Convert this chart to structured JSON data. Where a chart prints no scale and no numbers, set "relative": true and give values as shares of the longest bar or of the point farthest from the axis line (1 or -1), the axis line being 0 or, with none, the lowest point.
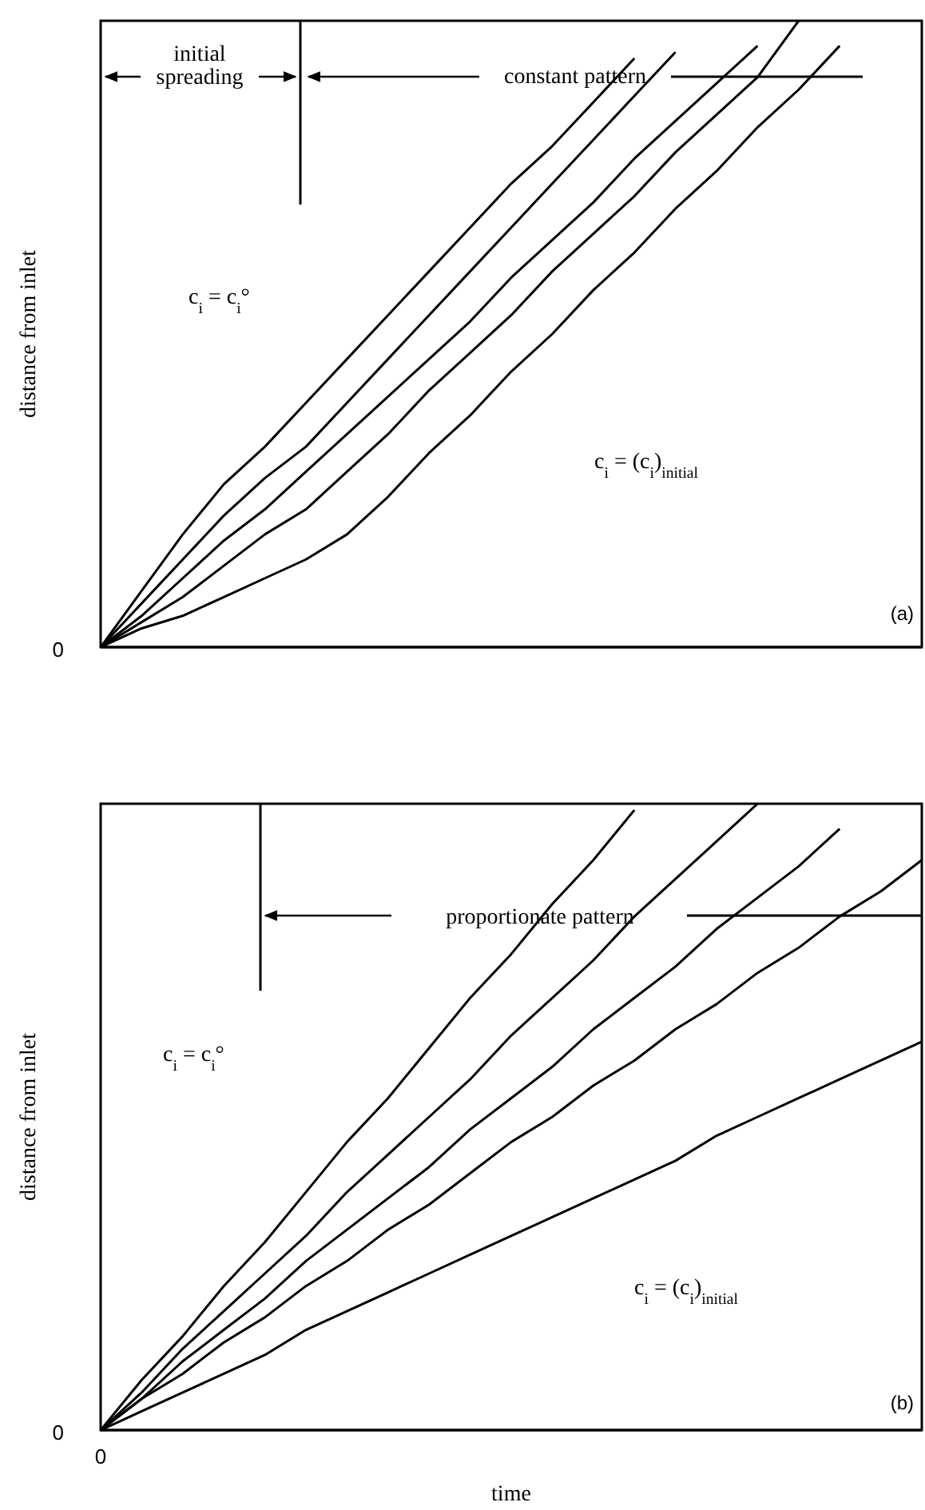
{
  "chart_data": [
    {
      "type": "line",
      "relative": true,
      "ylabel": "distance from inlet",
      "categories": [
        null,
        null,
        null,
        null,
        null,
        null,
        null,
        null,
        null,
        null,
        null,
        null,
        null,
        null,
        null,
        null,
        null,
        null,
        null,
        null,
        null
      ],
      "series": [
        {
          "color": "#000000",
          "values": [
            0,
            0.09,
            0.18,
            0.26,
            0.32,
            0.39,
            0.46,
            0.53,
            0.6,
            0.67,
            0.74,
            0.8,
            0.87,
            0.94,
            null,
            null,
            null,
            null,
            null,
            null,
            null
          ]
        },
        {
          "color": "#000000",
          "values": [
            0,
            0.07,
            0.14,
            0.21,
            0.27,
            0.32,
            0.39,
            0.46,
            0.53,
            0.6,
            0.67,
            0.74,
            0.81,
            0.88,
            0.95,
            null,
            null,
            null,
            null,
            null,
            null
          ]
        },
        {
          "color": "#000000",
          "values": [
            0,
            0.05,
            0.11,
            0.17,
            0.22,
            0.28,
            0.34,
            0.4,
            0.46,
            0.52,
            0.59,
            0.65,
            0.71,
            0.78,
            0.84,
            0.9,
            0.96,
            null,
            null,
            null,
            null
          ]
        },
        {
          "color": "#000000",
          "values": [
            0,
            0.04,
            0.08,
            0.13,
            0.18,
            0.22,
            0.28,
            0.34,
            0.41,
            0.47,
            0.53,
            0.6,
            0.66,
            0.72,
            0.79,
            0.85,
            0.91,
            1.0,
            null,
            null,
            null
          ]
        },
        {
          "color": "#000000",
          "values": [
            0,
            0.03,
            0.05,
            0.08,
            0.11,
            0.14,
            0.18,
            0.24,
            0.31,
            0.37,
            0.44,
            0.5,
            0.57,
            0.63,
            0.7,
            0.76,
            0.83,
            0.89,
            0.96,
            null,
            null
          ]
        }
      ],
      "annotations": [
        "0",
        "initial spreading",
        "constant pattern",
        "c$_{i}$ = c$_{i}$°",
        "c$_{i}$ = (c$_{i}$)$_{initial}$",
        "(a)"
      ]
    },
    {
      "type": "line",
      "relative": true,
      "ylabel": "distance from inlet",
      "xlabel": "time",
      "categories": [
        null,
        null,
        null,
        null,
        null,
        null,
        null,
        null,
        null,
        null,
        null,
        null,
        null,
        null,
        null,
        null,
        null,
        null,
        null,
        null,
        null
      ],
      "series": [
        {
          "color": "#000000",
          "values": [
            0,
            0.08,
            0.15,
            0.23,
            0.3,
            0.38,
            0.46,
            0.53,
            0.61,
            0.69,
            0.76,
            0.84,
            0.91,
            0.99,
            null,
            null,
            null,
            null,
            null,
            null,
            null
          ]
        },
        {
          "color": "#000000",
          "values": [
            0,
            0.06,
            0.13,
            0.19,
            0.25,
            0.31,
            0.38,
            0.44,
            0.5,
            0.56,
            0.63,
            0.69,
            0.75,
            0.82,
            0.88,
            0.94,
            1.0,
            null,
            null,
            null,
            null
          ]
        },
        {
          "color": "#000000",
          "values": [
            0,
            0.05,
            0.11,
            0.16,
            0.21,
            0.27,
            0.32,
            0.37,
            0.42,
            0.48,
            0.53,
            0.58,
            0.64,
            0.69,
            0.74,
            0.8,
            0.85,
            0.9,
            0.96,
            null,
            null
          ]
        },
        {
          "color": "#000000",
          "values": [
            0,
            0.05,
            0.09,
            0.14,
            0.18,
            0.23,
            0.27,
            0.32,
            0.36,
            0.41,
            0.46,
            0.5,
            0.55,
            0.59,
            0.64,
            0.68,
            0.73,
            0.77,
            0.82,
            0.86,
            0.91
          ]
        },
        {
          "color": "#000000",
          "values": [
            0,
            0.03,
            0.06,
            0.09,
            0.12,
            0.16,
            0.19,
            0.22,
            0.25,
            0.28,
            0.31,
            0.34,
            0.37,
            0.4,
            0.43,
            0.47,
            0.5,
            0.53,
            0.56,
            0.59,
            0.62
          ]
        }
      ],
      "annotations": [
        "0",
        "0",
        "proportionate pattern",
        "c$_{i}$ = c$_{i}$°",
        "c$_{i}$ = (c$_{i}$)$_{initial}$",
        "(b)"
      ]
    }
  ]
}
